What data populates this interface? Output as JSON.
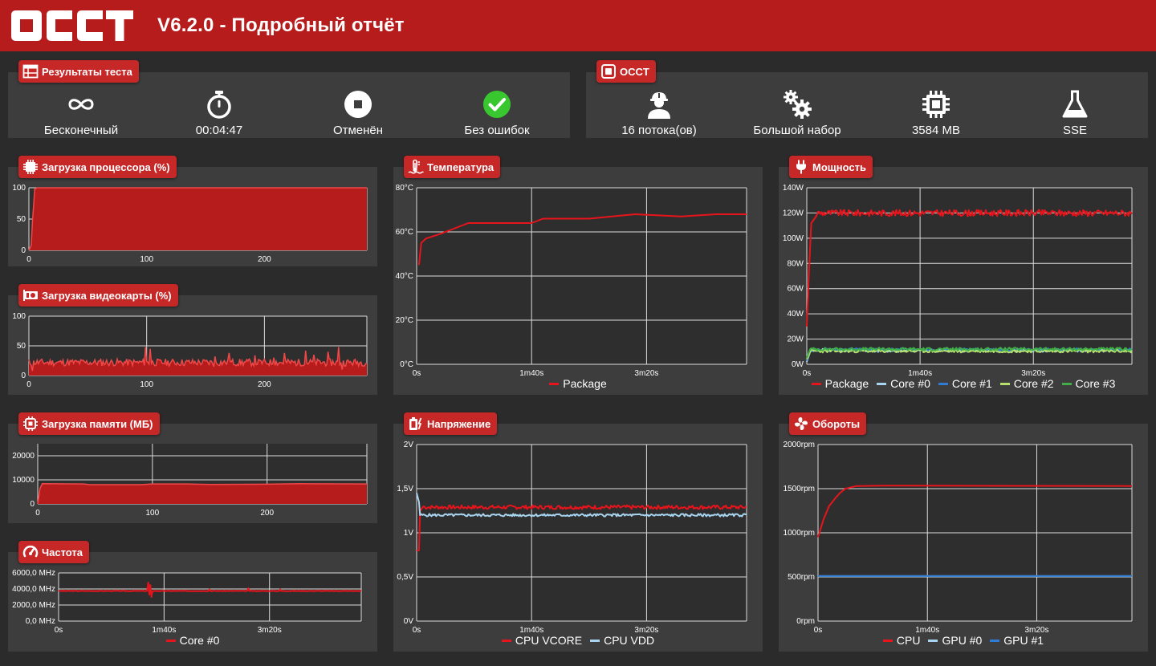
{
  "header": {
    "logo_text": "OCCT",
    "title": "V6.2.0 - Подробный отчёт"
  },
  "colors": {
    "header_bg": "#b71c1c",
    "badge_bg": "#c62828",
    "panel_bg": "#3d3d3d",
    "page_bg": "#2b2b2b",
    "series_red": "#e8141c",
    "series_light_blue": "#a8d4f0",
    "series_blue": "#2e7cd6",
    "series_light_green": "#b7e06a",
    "series_green": "#3fae45",
    "success_green": "#39c72f"
  },
  "results": {
    "title": "Результаты теста",
    "icon": "calendar-table-icon",
    "items": [
      {
        "icon": "infinity-icon",
        "label": "Бесконечный"
      },
      {
        "icon": "stopwatch-icon",
        "label": "00:04:47"
      },
      {
        "icon": "stop-circle-icon",
        "label": "Отменён"
      },
      {
        "icon": "check-circle-icon",
        "label": "Без ошибок"
      }
    ]
  },
  "occt": {
    "title": "OCCT",
    "icon": "occt-square-icon",
    "items": [
      {
        "icon": "worker-icon",
        "label": "16 потока(ов)"
      },
      {
        "icon": "gears-icon",
        "label": "Большой набор"
      },
      {
        "icon": "chip-icon",
        "label": "3584 MB"
      },
      {
        "icon": "flask-icon",
        "label": "SSE"
      }
    ]
  },
  "charts": {
    "cpu": {
      "title": "Загрузка процессора (%)",
      "icon": "cpu-icon"
    },
    "gpu": {
      "title": "Загрузка видеокарты (%)",
      "icon": "gpu-card-icon"
    },
    "memory": {
      "title": "Загрузка памяти (МБ)",
      "icon": "memory-chip-icon"
    },
    "frequency": {
      "title": "Частота",
      "icon": "speedometer-icon"
    },
    "temperature": {
      "title": "Температура",
      "icon": "thermometer-icon"
    },
    "voltage": {
      "title": "Напряжение",
      "icon": "battery-bolt-icon"
    },
    "power": {
      "title": "Мощность",
      "icon": "plug-icon"
    },
    "fans": {
      "title": "Обороты",
      "icon": "fan-icon"
    }
  },
  "chart_data": [
    {
      "id": "cpu",
      "type": "area",
      "title": "Загрузка процессора (%)",
      "x_ticks": [
        "0",
        "100",
        "200"
      ],
      "x_tick_values": [
        0,
        100,
        200
      ],
      "y_ticks": [
        "100",
        "50",
        "0"
      ],
      "y_tick_values": [
        100,
        50,
        0
      ],
      "xlim": [
        0,
        287
      ],
      "ylim": [
        0,
        100
      ],
      "series": [
        {
          "color": "#e8141c",
          "points": [
            [
              0,
              0
            ],
            [
              2,
              8
            ],
            [
              3,
              45
            ],
            [
              5,
              98
            ],
            [
              7,
              100
            ],
            [
              287,
              100
            ]
          ]
        }
      ]
    },
    {
      "id": "gpu",
      "type": "area",
      "title": "Загрузка видеокарты (%)",
      "x_ticks": [
        "0",
        "100",
        "200"
      ],
      "x_tick_values": [
        0,
        100,
        200
      ],
      "y_ticks": [
        "100",
        "50",
        "0"
      ],
      "y_tick_values": [
        100,
        50,
        0
      ],
      "xlim": [
        0,
        287
      ],
      "ylim": [
        0,
        100
      ],
      "series": [
        {
          "color": "#e8141c",
          "base": 22,
          "noise": 6,
          "seed": 11,
          "spikes": [
            [
              3,
              8
            ],
            [
              99,
              48
            ],
            [
              103,
              45
            ],
            [
              158,
              32
            ],
            [
              157,
              15
            ],
            [
              170,
              38
            ],
            [
              192,
              34
            ],
            [
              208,
              30
            ],
            [
              217,
              38
            ],
            [
              235,
              42
            ],
            [
              242,
              35
            ],
            [
              254,
              40
            ],
            [
              263,
              48
            ],
            [
              266,
              10
            ],
            [
              272,
              22
            ],
            [
              289,
              36
            ]
          ]
        }
      ]
    },
    {
      "id": "memory",
      "type": "area",
      "title": "Загрузка памяти (МБ)",
      "x_ticks": [
        "0",
        "100",
        "200"
      ],
      "x_tick_values": [
        0,
        100,
        200
      ],
      "y_ticks": [
        "20000",
        "10000",
        "0"
      ],
      "y_tick_values": [
        20000,
        10000,
        0
      ],
      "xlim": [
        0,
        287
      ],
      "ylim": [
        0,
        25000
      ],
      "series": [
        {
          "color": "#e8141c",
          "points": [
            [
              0,
              0
            ],
            [
              2,
              6500
            ],
            [
              4,
              8400
            ],
            [
              40,
              8300
            ],
            [
              45,
              8000
            ],
            [
              90,
              8000
            ],
            [
              100,
              8300
            ],
            [
              130,
              8300
            ],
            [
              150,
              8100
            ],
            [
              200,
              8200
            ],
            [
              230,
              8400
            ],
            [
              287,
              8300
            ]
          ]
        }
      ]
    },
    {
      "id": "frequency",
      "type": "line",
      "title": "Частота",
      "x_ticks": [
        "0s",
        "1m40s",
        "3m20s"
      ],
      "x_tick_values": [
        0,
        100,
        200
      ],
      "y_ticks": [
        "6000,0 MHz",
        "4000,0 MHz",
        "2000,0 MHz",
        "0,0 MHz"
      ],
      "y_tick_values": [
        6000,
        4000,
        2000,
        0
      ],
      "xlim": [
        0,
        287
      ],
      "ylim": [
        0,
        6000
      ],
      "series": [
        {
          "name": "Core #0",
          "color": "#e8141c",
          "base": 3750,
          "noise": 40,
          "seed": 3,
          "spikes": [
            [
              85,
              4800
            ],
            [
              86,
              3300
            ],
            [
              87,
              4500
            ],
            [
              88,
              3000
            ],
            [
              143,
              3950
            ],
            [
              180,
              4100
            ],
            [
              210,
              3950
            ]
          ]
        }
      ]
    },
    {
      "id": "temperature",
      "type": "line",
      "title": "Температура",
      "x_ticks": [
        "0s",
        "1m40s",
        "3m20s"
      ],
      "x_tick_values": [
        0,
        100,
        200
      ],
      "y_ticks": [
        "80°C",
        "60°C",
        "40°C",
        "20°C",
        "0°C"
      ],
      "y_tick_values": [
        80,
        60,
        40,
        20,
        0
      ],
      "xlim": [
        0,
        287
      ],
      "ylim": [
        0,
        80
      ],
      "series": [
        {
          "name": "Package",
          "color": "#e8141c",
          "points": [
            [
              2,
              45
            ],
            [
              4,
              55
            ],
            [
              8,
              57
            ],
            [
              20,
              59
            ],
            [
              35,
              62
            ],
            [
              45,
              64
            ],
            [
              100,
              64
            ],
            [
              110,
              66
            ],
            [
              150,
              66
            ],
            [
              170,
              67
            ],
            [
              190,
              68
            ],
            [
              230,
              67
            ],
            [
              260,
              68
            ],
            [
              287,
              68
            ]
          ]
        }
      ]
    },
    {
      "id": "voltage",
      "type": "line",
      "title": "Напряжение",
      "x_ticks": [
        "0s",
        "1m40s",
        "3m20s"
      ],
      "x_tick_values": [
        0,
        100,
        200
      ],
      "y_ticks": [
        "2V",
        "1,5V",
        "1V",
        "0,5V",
        "0V"
      ],
      "y_tick_values": [
        2,
        1.5,
        1,
        0.5,
        0
      ],
      "xlim": [
        0,
        287
      ],
      "ylim": [
        0,
        2
      ],
      "series": [
        {
          "name": "CPU VCORE",
          "color": "#e8141c",
          "base": 1.29,
          "noise": 0.022,
          "seed": 7,
          "points_head": [
            [
              0,
              0.8
            ],
            [
              2,
              0.8
            ],
            [
              3,
              1.25
            ],
            [
              6,
              1.3
            ]
          ]
        },
        {
          "name": "CPU VDD",
          "color": "#a8d4f0",
          "base": 1.2,
          "noise": 0.015,
          "seed": 5,
          "points_head": [
            [
              0,
              1.45
            ],
            [
              2,
              1.35
            ],
            [
              3,
              1.2
            ]
          ]
        }
      ]
    },
    {
      "id": "power",
      "type": "line",
      "title": "Мощность",
      "x_ticks": [
        "0s",
        "1m40s",
        "3m20s"
      ],
      "x_tick_values": [
        0,
        100,
        200
      ],
      "y_ticks": [
        "140W",
        "120W",
        "100W",
        "80W",
        "60W",
        "40W",
        "20W",
        "0W"
      ],
      "y_tick_values": [
        140,
        120,
        100,
        80,
        60,
        40,
        20,
        0
      ],
      "xlim": [
        0,
        287
      ],
      "ylim": [
        0,
        140
      ],
      "series": [
        {
          "name": "Package",
          "color": "#e8141c",
          "base": 120,
          "noise": 2.5,
          "seed": 9,
          "points_head": [
            [
              0,
              30
            ],
            [
              2,
              75
            ],
            [
              4,
              112
            ],
            [
              8,
              117
            ]
          ]
        },
        {
          "name": "Core #0",
          "color": "#a8d4f0",
          "base": 11,
          "noise": 1.2,
          "seed": 21,
          "points_head": [
            [
              0,
              2
            ],
            [
              3,
              10
            ]
          ]
        },
        {
          "name": "Core #1",
          "color": "#2e7cd6",
          "base": 11.5,
          "noise": 1.2,
          "seed": 22,
          "points_head": [
            [
              0,
              3
            ],
            [
              3,
              11
            ]
          ]
        },
        {
          "name": "Core #2",
          "color": "#b7e06a",
          "base": 10.5,
          "noise": 1.2,
          "seed": 23,
          "points_head": [
            [
              0,
              4
            ],
            [
              3,
              10
            ]
          ]
        },
        {
          "name": "Core #3",
          "color": "#3fae45",
          "base": 12,
          "noise": 1.2,
          "seed": 24,
          "points_head": [
            [
              0,
              5
            ],
            [
              3,
              12
            ]
          ]
        }
      ]
    },
    {
      "id": "fans",
      "type": "line",
      "title": "Обороты",
      "x_ticks": [
        "0s",
        "1m40s",
        "3m20s"
      ],
      "x_tick_values": [
        0,
        100,
        200
      ],
      "y_ticks": [
        "2000rpm",
        "1500rpm",
        "1000rpm",
        "500rpm",
        "0rpm"
      ],
      "y_tick_values": [
        2000,
        1500,
        1000,
        500,
        0
      ],
      "xlim": [
        0,
        287
      ],
      "ylim": [
        0,
        2000
      ],
      "series": [
        {
          "name": "CPU",
          "color": "#e8141c",
          "points": [
            [
              0,
              950
            ],
            [
              5,
              1150
            ],
            [
              10,
              1300
            ],
            [
              15,
              1380
            ],
            [
              20,
              1450
            ],
            [
              25,
              1500
            ],
            [
              35,
              1530
            ],
            [
              60,
              1535
            ],
            [
              287,
              1530
            ]
          ]
        },
        {
          "name": "GPU #0",
          "color": "#a8d4f0",
          "base": 510,
          "noise": 0,
          "seed": 1
        },
        {
          "name": "GPU #1",
          "color": "#2e7cd6",
          "base": 510,
          "noise": 0,
          "seed": 2
        }
      ]
    }
  ]
}
